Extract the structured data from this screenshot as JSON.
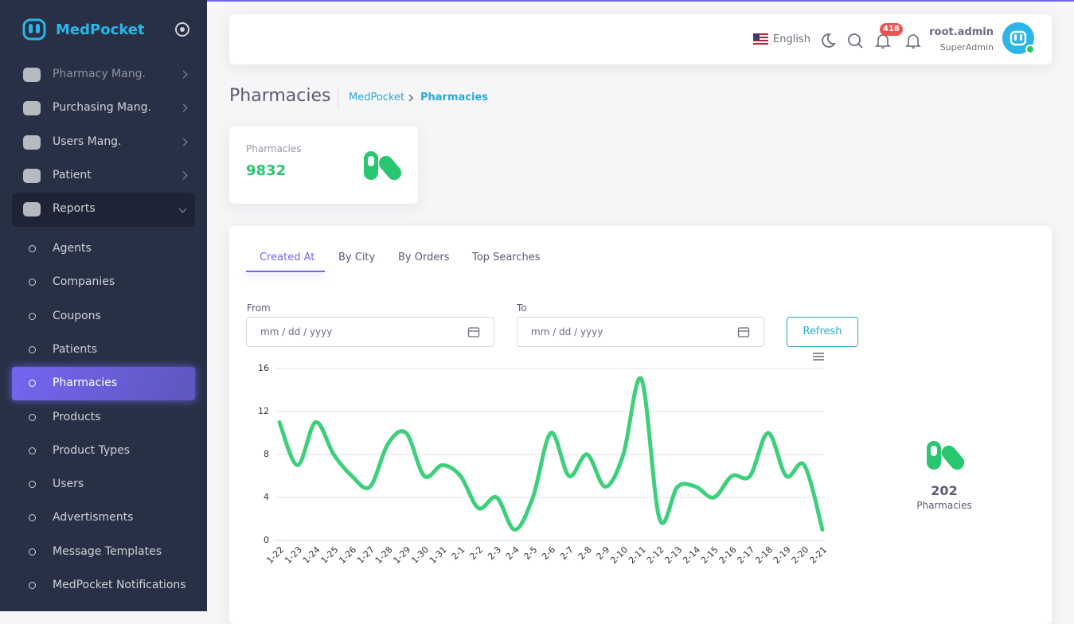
{
  "sidebar": {
    "brand": "MedPocket",
    "menu": [
      "Pharmacy Mang.",
      "Purchasing Mang.",
      "Users Mang.",
      "Patient",
      "Reports"
    ],
    "submenu": [
      "Agents",
      "Companies",
      "Coupons",
      "Patients",
      "Pharmacies",
      "Products",
      "Product Types",
      "Users",
      "Advertisments",
      "Message Templates",
      "MedPocket Notifications"
    ]
  },
  "header": {
    "language": "English",
    "badge": "418",
    "user_name": "root.admin",
    "user_role": "SuperAdmin"
  },
  "page": {
    "title": "Pharmacies",
    "breadcrumb": [
      "MedPocket",
      "Pharmacies"
    ]
  },
  "stat_card": {
    "label": "Pharmacies",
    "value": 9832
  },
  "tabs": [
    "Created At",
    "By City",
    "By Orders",
    "Top Searches"
  ],
  "filters": {
    "from_label": "From",
    "to_label": "To",
    "placeholder": "mm / dd / yyyy",
    "button": "Refresh"
  },
  "summary": {
    "value": 202,
    "label": "Pharmacies"
  },
  "chart_data": {
    "type": "line",
    "categories": [
      "1-22",
      "1-23",
      "1-24",
      "1-25",
      "1-26",
      "1-27",
      "1-28",
      "1-29",
      "1-30",
      "1-31",
      "2-1",
      "2-2",
      "2-3",
      "2-4",
      "2-5",
      "2-6",
      "2-7",
      "2-8",
      "2-9",
      "2-10",
      "2-11",
      "2-12",
      "2-13",
      "2-14",
      "2-15",
      "2-16",
      "2-17",
      "2-18",
      "2-19",
      "2-20",
      "2-21"
    ],
    "values": [
      11,
      7,
      11,
      8,
      6,
      5,
      9,
      10,
      6,
      7,
      6,
      3,
      4,
      1,
      4,
      10,
      6,
      8,
      5,
      8,
      15,
      2,
      5,
      5,
      4,
      6,
      6,
      10,
      6,
      7,
      1
    ],
    "color": "#3ecf7b",
    "ylim": [
      0,
      16
    ],
    "yticks": [
      0,
      4,
      8,
      12,
      16
    ],
    "grid": true
  }
}
